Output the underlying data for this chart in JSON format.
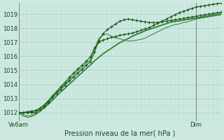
{
  "title": "Pression niveau de la mer( hPa )",
  "ylim": [
    1011.4,
    1019.8
  ],
  "xlim": [
    0,
    48
  ],
  "x_tick_positions": [
    0,
    42
  ],
  "x_tick_labels": [
    "Ve6am",
    "Dim"
  ],
  "bg_color": "#cce8e0",
  "grid_major_color": "#aacfc8",
  "grid_minor_color": "#bcddd6",
  "line_color_dark": "#1a5c1a",
  "line_color_mid": "#2a7a2a",
  "vline_color": "#888888",
  "yticks": [
    1012,
    1013,
    1014,
    1015,
    1016,
    1017,
    1018,
    1019
  ],
  "series1_x": [
    0,
    1,
    2,
    3,
    4,
    5,
    6,
    7,
    8,
    9,
    10,
    11,
    12,
    13,
    14,
    15,
    16,
    17,
    18,
    19,
    20,
    21,
    22,
    23,
    24,
    25,
    26,
    27,
    28,
    29,
    30,
    31,
    32,
    33,
    34,
    35,
    36,
    37,
    38,
    39,
    40,
    41,
    42,
    43,
    44,
    45,
    46,
    47,
    48
  ],
  "series1_y": [
    1012.0,
    1012.0,
    1012.05,
    1012.1,
    1012.15,
    1012.3,
    1012.5,
    1012.8,
    1013.2,
    1013.5,
    1013.85,
    1014.15,
    1014.5,
    1014.8,
    1015.1,
    1015.35,
    1015.65,
    1015.95,
    1016.6,
    1017.0,
    1017.15,
    1017.25,
    1017.35,
    1017.4,
    1017.5,
    1017.55,
    1017.6,
    1017.65,
    1017.75,
    1017.85,
    1017.95,
    1018.05,
    1018.2,
    1018.35,
    1018.5,
    1018.65,
    1018.8,
    1018.95,
    1019.1,
    1019.2,
    1019.3,
    1019.4,
    1019.5,
    1019.55,
    1019.6,
    1019.65,
    1019.7,
    1019.75,
    1019.8
  ],
  "series2_x": [
    0,
    1,
    2,
    3,
    4,
    5,
    6,
    7,
    8,
    9,
    10,
    11,
    12,
    13,
    14,
    15,
    16,
    17,
    18,
    19,
    20,
    21,
    22,
    23,
    24,
    25,
    26,
    27,
    28,
    29,
    30,
    31,
    32,
    33,
    34,
    35,
    36,
    37,
    38,
    39,
    40,
    41,
    42,
    43,
    44,
    45,
    46,
    47,
    48
  ],
  "series2_y": [
    1012.0,
    1011.75,
    1011.65,
    1011.7,
    1011.85,
    1012.05,
    1012.3,
    1012.55,
    1012.85,
    1013.15,
    1013.45,
    1013.7,
    1014.0,
    1014.25,
    1014.55,
    1014.8,
    1015.1,
    1015.35,
    1015.65,
    1015.9,
    1016.15,
    1016.35,
    1016.55,
    1016.75,
    1016.95,
    1017.1,
    1017.25,
    1017.4,
    1017.55,
    1017.65,
    1017.8,
    1017.9,
    1018.0,
    1018.1,
    1018.2,
    1018.3,
    1018.4,
    1018.45,
    1018.5,
    1018.55,
    1018.6,
    1018.65,
    1018.7,
    1018.75,
    1018.8,
    1018.85,
    1018.9,
    1018.95,
    1019.0
  ],
  "series3_x": [
    0,
    1,
    2,
    3,
    4,
    5,
    6,
    7,
    8,
    9,
    10,
    11,
    12,
    13,
    14,
    15,
    16,
    17,
    18,
    19,
    20,
    21,
    22,
    23,
    24,
    25,
    26,
    27,
    28,
    29,
    30,
    31,
    32,
    33,
    34,
    35,
    36,
    37,
    38,
    39,
    40,
    41,
    42,
    43,
    44,
    45,
    46,
    47,
    48
  ],
  "series3_y": [
    1012.0,
    1011.85,
    1011.75,
    1011.78,
    1011.9,
    1012.1,
    1012.35,
    1012.6,
    1012.9,
    1013.2,
    1013.5,
    1013.75,
    1014.05,
    1014.3,
    1014.6,
    1014.85,
    1015.15,
    1015.4,
    1015.7,
    1015.95,
    1016.2,
    1016.4,
    1016.6,
    1016.8,
    1017.0,
    1017.15,
    1017.3,
    1017.45,
    1017.6,
    1017.7,
    1017.85,
    1017.95,
    1018.05,
    1018.15,
    1018.25,
    1018.35,
    1018.45,
    1018.5,
    1018.55,
    1018.6,
    1018.65,
    1018.7,
    1018.75,
    1018.8,
    1018.85,
    1018.9,
    1018.95,
    1019.0,
    1019.05
  ],
  "series4_x": [
    0,
    1,
    2,
    3,
    4,
    5,
    6,
    7,
    8,
    9,
    10,
    11,
    12,
    13,
    14,
    15,
    16,
    17,
    18,
    19,
    20,
    21,
    22,
    23,
    24,
    25,
    26,
    27,
    28,
    29,
    30,
    31,
    32,
    33,
    34,
    35,
    36,
    37,
    38,
    39,
    40,
    41,
    42,
    43,
    44,
    45,
    46,
    47,
    48
  ],
  "series4_y": [
    1012.0,
    1012.0,
    1012.0,
    1012.05,
    1012.1,
    1012.3,
    1012.55,
    1012.85,
    1013.15,
    1013.45,
    1013.75,
    1014.05,
    1014.35,
    1014.65,
    1014.95,
    1015.2,
    1015.5,
    1015.75,
    1016.5,
    1017.3,
    1017.5,
    1017.6,
    1017.4,
    1017.3,
    1017.25,
    1017.15,
    1017.1,
    1017.1,
    1017.15,
    1017.2,
    1017.3,
    1017.45,
    1017.6,
    1017.75,
    1017.9,
    1018.05,
    1018.15,
    1018.25,
    1018.3,
    1018.4,
    1018.45,
    1018.55,
    1018.65,
    1018.7,
    1018.75,
    1018.8,
    1018.85,
    1018.9,
    1018.95
  ],
  "series5_x": [
    0,
    1,
    2,
    3,
    4,
    5,
    6,
    7,
    8,
    9,
    10,
    11,
    12,
    13,
    14,
    15,
    16,
    17,
    18,
    19,
    20,
    21,
    22,
    23,
    24,
    25,
    26,
    27,
    28,
    29,
    30,
    31,
    32,
    33,
    34,
    35,
    36,
    37,
    38,
    39,
    40,
    41,
    42,
    43,
    44,
    45,
    46,
    47,
    48
  ],
  "series5_y": [
    1012.0,
    1012.0,
    1012.0,
    1012.0,
    1012.0,
    1012.2,
    1012.4,
    1012.7,
    1013.05,
    1013.35,
    1013.65,
    1013.95,
    1014.25,
    1014.5,
    1014.8,
    1015.05,
    1015.35,
    1015.6,
    1016.3,
    1017.1,
    1017.6,
    1017.9,
    1018.1,
    1018.3,
    1018.5,
    1018.6,
    1018.65,
    1018.6,
    1018.55,
    1018.5,
    1018.45,
    1018.4,
    1018.4,
    1018.4,
    1018.45,
    1018.5,
    1018.55,
    1018.6,
    1018.65,
    1018.7,
    1018.75,
    1018.8,
    1018.85,
    1018.9,
    1018.95,
    1019.0,
    1019.05,
    1019.1,
    1019.15
  ]
}
